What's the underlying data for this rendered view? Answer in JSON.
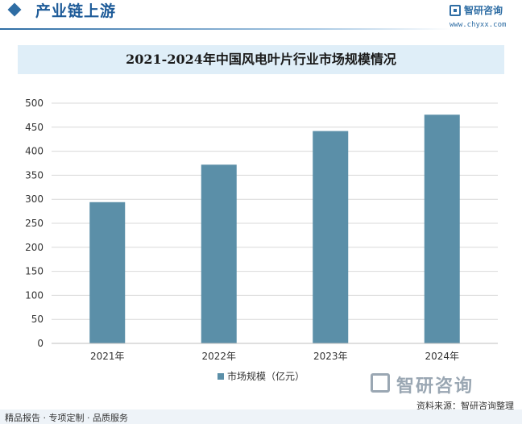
{
  "header": {
    "title": "产业链上游",
    "brand_name": "智研咨询",
    "brand_url": "www.chyxx.com"
  },
  "colors": {
    "bar": "#5b8fa8",
    "grid": "#d9d9d9",
    "header_accent": "#2e6da4",
    "title_bg": "#dfeef8"
  },
  "chart_data": {
    "type": "bar",
    "title": "2021-2024年中国风电叶片行业市场规模情况",
    "categories": [
      "2021年",
      "2022年",
      "2023年",
      "2024年"
    ],
    "series": [
      {
        "name": "市场规模（亿元）",
        "values": [
          294,
          372,
          442,
          476
        ]
      }
    ],
    "ylim": [
      0,
      500
    ],
    "yticks": [
      0,
      50,
      100,
      150,
      200,
      250,
      300,
      350,
      400,
      450,
      500
    ],
    "ytick_labels": [
      "0",
      "50",
      "100",
      "150",
      "200",
      "250",
      "300",
      "350",
      "400",
      "450",
      "500"
    ],
    "grid": true,
    "legend_position": "bottom"
  },
  "footer": {
    "left_text": "精品报告 · 专项定制 · 品质服务",
    "source": "资料来源：智研咨询整理",
    "brand_name": "智研咨询"
  }
}
